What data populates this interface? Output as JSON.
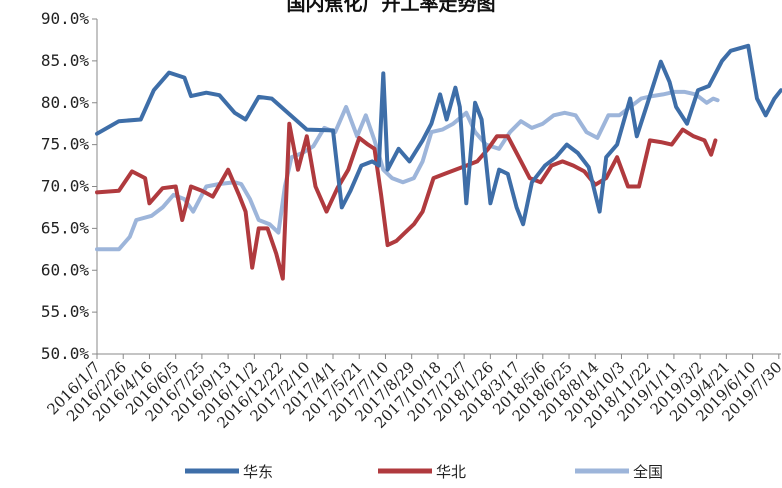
{
  "chart_data": {
    "type": "line",
    "title": "国内焦化厂开工率走势图",
    "xlabel": "",
    "ylabel": "",
    "ylim": [
      50,
      90
    ],
    "yticks": [
      "50.0%",
      "55.0%",
      "60.0%",
      "65.0%",
      "70.0%",
      "75.0%",
      "80.0%",
      "85.0%",
      "90.0%"
    ],
    "x_tick_labels": [
      "2016/1/7",
      "2016/2/26",
      "2016/4/16",
      "2016/6/5",
      "2016/7/25",
      "2016/9/13",
      "2016/11/2",
      "2016/12/22",
      "2017/2/10",
      "2017/4/1",
      "2017/5/21",
      "2017/7/10",
      "2017/8/29",
      "2017/10/18",
      "2017/12/7",
      "2018/1/26",
      "2018/3/17",
      "2018/5/6",
      "2018/6/25",
      "2018/8/14",
      "2018/10/3",
      "2018/11/22",
      "2019/1/11",
      "2019/3/2",
      "2019/4/21",
      "2019/6/10",
      "2019/7/30"
    ],
    "grid": false,
    "legend_position": "bottom",
    "series": [
      {
        "name": "华东",
        "color": "#3E6EA8",
        "points": [
          [
            0,
            76.3
          ],
          [
            1,
            77.8
          ],
          [
            2,
            78.0
          ],
          [
            2.6,
            81.5
          ],
          [
            3.3,
            83.6
          ],
          [
            4,
            83.0
          ],
          [
            4.3,
            80.8
          ],
          [
            5,
            81.2
          ],
          [
            5.6,
            80.9
          ],
          [
            6.3,
            78.8
          ],
          [
            6.8,
            78.0
          ],
          [
            7.4,
            80.7
          ],
          [
            8,
            80.5
          ],
          [
            9.6,
            76.8
          ],
          [
            10.8,
            76.7
          ],
          [
            11.2,
            67.5
          ],
          [
            11.6,
            69.5
          ],
          [
            12.1,
            72.5
          ],
          [
            12.6,
            73.0
          ],
          [
            12.9,
            72.5
          ],
          [
            13.1,
            83.5
          ],
          [
            13.3,
            72.0
          ],
          [
            13.8,
            74.5
          ],
          [
            14.3,
            73.0
          ],
          [
            14.9,
            75.5
          ],
          [
            15.3,
            77.5
          ],
          [
            15.7,
            81.0
          ],
          [
            16.0,
            78.0
          ],
          [
            16.4,
            81.8
          ],
          [
            16.6,
            79.5
          ],
          [
            16.9,
            68.0
          ],
          [
            17.3,
            80.0
          ],
          [
            17.6,
            78.0
          ],
          [
            18.0,
            68.0
          ],
          [
            18.4,
            72.0
          ],
          [
            18.8,
            71.5
          ],
          [
            19.2,
            67.5
          ],
          [
            19.5,
            65.5
          ],
          [
            19.9,
            70.5
          ],
          [
            20.5,
            72.5
          ],
          [
            21,
            73.5
          ],
          [
            21.5,
            75.0
          ],
          [
            22,
            74.0
          ],
          [
            22.5,
            72.3
          ],
          [
            23,
            67.0
          ],
          [
            23.3,
            73.5
          ],
          [
            23.8,
            75.0
          ],
          [
            24.4,
            80.5
          ],
          [
            24.7,
            76.0
          ],
          [
            25.2,
            80.0
          ],
          [
            25.8,
            84.9
          ],
          [
            26.2,
            82.5
          ],
          [
            26.5,
            79.5
          ],
          [
            27,
            77.5
          ],
          [
            27.5,
            81.5
          ],
          [
            28,
            82.0
          ],
          [
            28.6,
            85.0
          ],
          [
            29,
            86.2
          ],
          [
            29.8,
            86.8
          ],
          [
            30.2,
            80.5
          ],
          [
            30.6,
            78.5
          ],
          [
            31,
            80.5
          ],
          [
            31.3,
            81.5
          ]
        ]
      },
      {
        "name": "华北",
        "color": "#B03A3E",
        "points": [
          [
            0,
            69.3
          ],
          [
            1,
            69.5
          ],
          [
            1.6,
            71.8
          ],
          [
            2.2,
            71.0
          ],
          [
            2.4,
            68.0
          ],
          [
            3,
            69.8
          ],
          [
            3.6,
            70.0
          ],
          [
            3.9,
            66.0
          ],
          [
            4.3,
            70.0
          ],
          [
            4.8,
            69.5
          ],
          [
            5.3,
            68.8
          ],
          [
            6,
            72.0
          ],
          [
            6.5,
            69.0
          ],
          [
            6.8,
            67.0
          ],
          [
            7.1,
            60.3
          ],
          [
            7.4,
            65.0
          ],
          [
            7.8,
            65.0
          ],
          [
            8.2,
            62.0
          ],
          [
            8.5,
            59.0
          ],
          [
            8.8,
            77.5
          ],
          [
            9.2,
            72.0
          ],
          [
            9.6,
            76.0
          ],
          [
            10,
            70.0
          ],
          [
            10.5,
            67.0
          ],
          [
            11,
            69.8
          ],
          [
            11.5,
            72.0
          ],
          [
            12.0,
            75.8
          ],
          [
            12.4,
            75.0
          ],
          [
            12.7,
            74.5
          ],
          [
            13.0,
            69.0
          ],
          [
            13.3,
            63.0
          ],
          [
            13.7,
            63.5
          ],
          [
            14.1,
            64.5
          ],
          [
            14.5,
            65.5
          ],
          [
            14.9,
            67.0
          ],
          [
            15.4,
            71.0
          ],
          [
            15.9,
            71.5
          ],
          [
            16.4,
            72.0
          ],
          [
            16.9,
            72.5
          ],
          [
            17.4,
            73.0
          ],
          [
            17.9,
            74.5
          ],
          [
            18.3,
            76.0
          ],
          [
            18.8,
            76.0
          ],
          [
            19.3,
            73.5
          ],
          [
            19.8,
            71.0
          ],
          [
            20.3,
            70.5
          ],
          [
            20.8,
            72.5
          ],
          [
            21.3,
            73.0
          ],
          [
            21.8,
            72.5
          ],
          [
            22.3,
            71.8
          ],
          [
            22.8,
            70.2
          ],
          [
            23.3,
            71.0
          ],
          [
            23.8,
            73.5
          ],
          [
            24.3,
            70.0
          ],
          [
            24.8,
            70.0
          ],
          [
            25.3,
            75.5
          ],
          [
            25.8,
            75.3
          ],
          [
            26.3,
            75.0
          ],
          [
            26.8,
            76.8
          ],
          [
            27.3,
            76.0
          ],
          [
            27.8,
            75.5
          ],
          [
            28.1,
            73.8
          ],
          [
            28.3,
            75.5
          ]
        ]
      },
      {
        "name": "全国",
        "color": "#9DB5DA",
        "points": [
          [
            0,
            62.5
          ],
          [
            1,
            62.5
          ],
          [
            1.5,
            64.0
          ],
          [
            1.8,
            66.0
          ],
          [
            2.5,
            66.5
          ],
          [
            3,
            67.5
          ],
          [
            3.5,
            69.0
          ],
          [
            4,
            68.5
          ],
          [
            4.4,
            67.0
          ],
          [
            5,
            70.0
          ],
          [
            5.6,
            70.3
          ],
          [
            6.3,
            70.5
          ],
          [
            6.6,
            70.3
          ],
          [
            7.0,
            68.5
          ],
          [
            7.4,
            66.0
          ],
          [
            7.9,
            65.5
          ],
          [
            8.3,
            64.5
          ],
          [
            8.6,
            70.0
          ],
          [
            8.9,
            73.5
          ],
          [
            9.4,
            74.0
          ],
          [
            9.9,
            74.8
          ],
          [
            10.4,
            77.0
          ],
          [
            10.9,
            76.5
          ],
          [
            11.4,
            79.5
          ],
          [
            11.9,
            76.0
          ],
          [
            12.3,
            78.5
          ],
          [
            12.7,
            75.5
          ],
          [
            13.1,
            72.0
          ],
          [
            13.5,
            71.0
          ],
          [
            14.0,
            70.5
          ],
          [
            14.5,
            71.0
          ],
          [
            14.9,
            73.0
          ],
          [
            15.3,
            76.5
          ],
          [
            15.8,
            76.8
          ],
          [
            16.3,
            77.5
          ],
          [
            16.9,
            78.8
          ],
          [
            17.3,
            76.5
          ],
          [
            17.8,
            75.0
          ],
          [
            18.4,
            74.5
          ],
          [
            18.9,
            76.5
          ],
          [
            19.4,
            77.8
          ],
          [
            19.9,
            77.0
          ],
          [
            20.4,
            77.5
          ],
          [
            20.9,
            78.5
          ],
          [
            21.4,
            78.8
          ],
          [
            21.9,
            78.5
          ],
          [
            22.4,
            76.5
          ],
          [
            22.9,
            75.8
          ],
          [
            23.4,
            78.5
          ],
          [
            23.9,
            78.5
          ],
          [
            24.4,
            79.5
          ],
          [
            24.9,
            80.5
          ],
          [
            25.4,
            80.8
          ],
          [
            25.9,
            81.0
          ],
          [
            26.4,
            81.3
          ],
          [
            26.9,
            81.3
          ],
          [
            27.4,
            81.0
          ],
          [
            27.9,
            80.0
          ],
          [
            28.2,
            80.5
          ],
          [
            28.4,
            80.3
          ]
        ]
      }
    ]
  }
}
